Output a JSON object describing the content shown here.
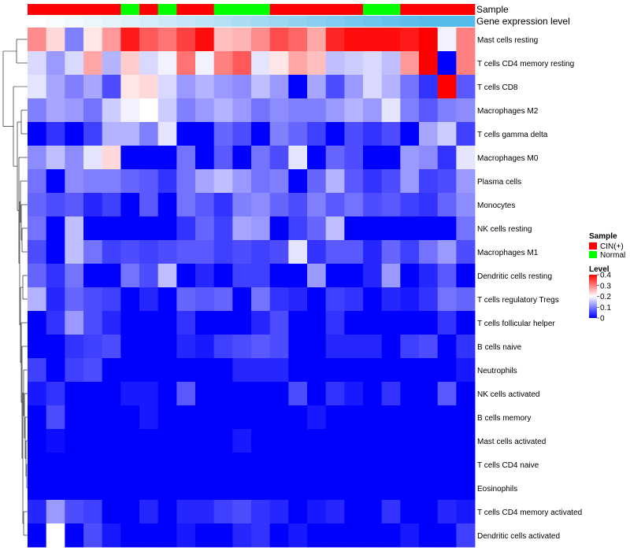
{
  "chart_data": {
    "type": "heatmap",
    "title": "",
    "annotation_titles": [
      "Sample",
      "Gene expression level"
    ],
    "legend_sample": {
      "title": "Sample",
      "labels": [
        "CIN(+)",
        "Normal"
      ],
      "colors": [
        "#ff0000",
        "#00ff00"
      ]
    },
    "legend_level": {
      "title": "Level",
      "ticks": [
        "0.4",
        "0.3",
        "0.2",
        "0.1",
        "0"
      ],
      "values": [
        0.4,
        0.3,
        0.2,
        0.1,
        0
      ],
      "colors": [
        "#0000ff",
        "#ffffff",
        "#ff0000"
      ],
      "range": [
        0,
        0.4
      ]
    },
    "samples": [
      "CIN(+)",
      "CIN(+)",
      "CIN(+)",
      "CIN(+)",
      "CIN(+)",
      "Normal",
      "CIN(+)",
      "Normal",
      "CIN(+)",
      "CIN(+)",
      "Normal",
      "Normal",
      "Normal",
      "CIN(+)",
      "CIN(+)",
      "CIN(+)",
      "CIN(+)",
      "CIN(+)",
      "Normal",
      "Normal",
      "CIN(+)",
      "CIN(+)",
      "CIN(+)",
      "CIN(+)"
    ],
    "gene_expression_colors": [
      "#ffffff",
      "#f9fcfe",
      "#f2f9fd",
      "#ebf6fc",
      "#e4f3fb",
      "#dcf0fa",
      "#d5edf9",
      "#cde9f8",
      "#c5e6f7",
      "#bde3f6",
      "#b4dff5",
      "#acdcf4",
      "#a3d8f3",
      "#9bd5f2",
      "#92d2f1",
      "#89cef0",
      "#80cbef",
      "#77c7ee",
      "#6ec4ed",
      "#66c0ec",
      "#5dbdeb",
      "#57bbea",
      "#55bbea",
      "#55bbea"
    ],
    "rows": [
      "Mast cells resting",
      "T cells CD4 memory resting",
      "T cells CD8",
      "Macrophages M2",
      "T cells gamma delta",
      "Macrophages M0",
      "Plasma cells",
      "Monocytes",
      "NK cells resting",
      "Macrophages M1",
      "Dendritic cells resting",
      "T cells regulatory  Tregs",
      "T cells follicular helper",
      "B cells naive",
      "Neutrophils",
      "NK cells activated",
      "B cells memory",
      "Mast cells activated",
      "T cells CD4 naive",
      "Eosinophils",
      "T cells CD4 memory activated",
      "Dendritic cells activated"
    ],
    "values": [
      [
        0.29,
        0.23,
        0.1,
        0.22,
        0.28,
        0.38,
        0.33,
        0.31,
        0.35,
        0.39,
        0.25,
        0.26,
        0.29,
        0.34,
        0.32,
        0.27,
        0.37,
        0.39,
        0.39,
        0.39,
        0.38,
        0.4,
        0.19,
        0.3
      ],
      [
        0.17,
        0.12,
        0.17,
        0.27,
        0.14,
        0.24,
        0.17,
        0.19,
        0.31,
        0.19,
        0.3,
        0.33,
        0.18,
        0.22,
        0.27,
        0.25,
        0.15,
        0.16,
        0.17,
        0.15,
        0.28,
        0.4,
        0.0,
        0.3
      ],
      [
        0.18,
        0.13,
        0.1,
        0.13,
        0.06,
        0.22,
        0.23,
        0.17,
        0.12,
        0.14,
        0.12,
        0.11,
        0.15,
        0.12,
        0.0,
        0.13,
        0.06,
        0.12,
        0.17,
        0.14,
        0.09,
        0.04,
        0.4,
        0.07
      ],
      [
        0.1,
        0.13,
        0.12,
        0.09,
        0.16,
        0.19,
        0.2,
        0.16,
        0.1,
        0.12,
        0.14,
        0.12,
        0.09,
        0.11,
        0.1,
        0.1,
        0.12,
        0.14,
        0.12,
        0.18,
        0.1,
        0.07,
        0.1,
        0.11
      ],
      [
        0.0,
        0.04,
        0.0,
        0.05,
        0.14,
        0.14,
        0.1,
        0.18,
        0.0,
        0.0,
        0.08,
        0.06,
        0.0,
        0.1,
        0.08,
        0.05,
        0.0,
        0.06,
        0.04,
        0.06,
        0.0,
        0.13,
        0.16,
        0.05
      ],
      [
        0.11,
        0.15,
        0.11,
        0.18,
        0.23,
        0.0,
        0.0,
        0.0,
        0.09,
        0.0,
        0.07,
        0.0,
        0.09,
        0.06,
        0.18,
        0.0,
        0.08,
        0.06,
        0.0,
        0.0,
        0.12,
        0.11,
        0.04,
        0.18
      ],
      [
        0.09,
        0.0,
        0.11,
        0.1,
        0.1,
        0.08,
        0.07,
        0.04,
        0.09,
        0.13,
        0.15,
        0.12,
        0.09,
        0.1,
        0.0,
        0.08,
        0.14,
        0.07,
        0.04,
        0.06,
        0.12,
        0.05,
        0.06,
        0.12
      ],
      [
        0.08,
        0.06,
        0.07,
        0.03,
        0.05,
        0.0,
        0.07,
        0.0,
        0.09,
        0.07,
        0.04,
        0.1,
        0.11,
        0.08,
        0.06,
        0.1,
        0.07,
        0.09,
        0.06,
        0.07,
        0.05,
        0.04,
        0.08,
        0.11
      ],
      [
        0.09,
        0.0,
        0.15,
        0.0,
        0.0,
        0.0,
        0.0,
        0.0,
        0.04,
        0.08,
        0.05,
        0.13,
        0.12,
        0.0,
        0.05,
        0.08,
        0.15,
        0.0,
        0.0,
        0.0,
        0.0,
        0.0,
        0.0,
        0.09
      ],
      [
        0.06,
        0.0,
        0.15,
        0.09,
        0.05,
        0.06,
        0.05,
        0.06,
        0.07,
        0.07,
        0.05,
        0.06,
        0.05,
        0.06,
        0.18,
        0.04,
        0.07,
        0.07,
        0.03,
        0.08,
        0.05,
        0.09,
        0.12,
        0.06
      ],
      [
        0.08,
        0.04,
        0.09,
        0.0,
        0.0,
        0.09,
        0.06,
        0.15,
        0.0,
        0.03,
        0.0,
        0.05,
        0.05,
        0.0,
        0.0,
        0.12,
        0.0,
        0.0,
        0.03,
        0.12,
        0.0,
        0.03,
        0.07,
        0.0
      ],
      [
        0.14,
        0.03,
        0.08,
        0.06,
        0.05,
        0.0,
        0.03,
        0.0,
        0.08,
        0.07,
        0.08,
        0.0,
        0.09,
        0.04,
        0.03,
        0.0,
        0.05,
        0.04,
        0.0,
        0.03,
        0.02,
        0.04,
        0.09,
        0.08
      ],
      [
        0.0,
        0.04,
        0.12,
        0.06,
        0.03,
        0.0,
        0.0,
        0.0,
        0.04,
        0.0,
        0.0,
        0.0,
        0.03,
        0.06,
        0.0,
        0.0,
        0.04,
        0.0,
        0.0,
        0.0,
        0.0,
        0.0,
        0.04,
        0.0
      ],
      [
        0.0,
        0.0,
        0.04,
        0.05,
        0.06,
        0.0,
        0.0,
        0.0,
        0.03,
        0.02,
        0.05,
        0.06,
        0.07,
        0.06,
        0.0,
        0.0,
        0.03,
        0.03,
        0.03,
        0.0,
        0.05,
        0.06,
        0.0,
        0.04
      ],
      [
        0.05,
        0.0,
        0.05,
        0.06,
        0.0,
        0.0,
        0.0,
        0.0,
        0.0,
        0.0,
        0.0,
        0.03,
        0.03,
        0.03,
        0.0,
        0.0,
        0.0,
        0.0,
        0.0,
        0.0,
        0.0,
        0.0,
        0.0,
        0.02
      ],
      [
        0.02,
        0.04,
        0.0,
        0.0,
        0.0,
        0.02,
        0.02,
        0.0,
        0.07,
        0.0,
        0.0,
        0.0,
        0.0,
        0.0,
        0.06,
        0.0,
        0.04,
        0.02,
        0.0,
        0.04,
        0.0,
        0.0,
        0.07,
        0.0
      ],
      [
        0.0,
        0.06,
        0.0,
        0.0,
        0.0,
        0.0,
        0.02,
        0.0,
        0.0,
        0.0,
        0.0,
        0.0,
        0.0,
        0.0,
        0.0,
        0.02,
        0.0,
        0.0,
        0.0,
        0.0,
        0.0,
        0.0,
        0.0,
        0.0
      ],
      [
        0.0,
        0.01,
        0.0,
        0.0,
        0.0,
        0.0,
        0.0,
        0.0,
        0.0,
        0.0,
        0.0,
        0.02,
        0.0,
        0.0,
        0.0,
        0.0,
        0.0,
        0.0,
        0.0,
        0.0,
        0.0,
        0.0,
        0.0,
        0.0
      ],
      [
        0.0,
        0.0,
        0.0,
        0.0,
        0.0,
        0.0,
        0.0,
        0.0,
        0.0,
        0.0,
        0.0,
        0.0,
        0.0,
        0.0,
        0.0,
        0.0,
        0.0,
        0.0,
        0.0,
        0.0,
        0.0,
        0.0,
        0.0,
        0.0
      ],
      [
        0.0,
        0.0,
        0.0,
        0.0,
        0.0,
        0.0,
        0.0,
        0.0,
        0.0,
        0.0,
        0.0,
        0.0,
        0.0,
        0.0,
        0.0,
        0.0,
        0.0,
        0.0,
        0.0,
        0.0,
        0.0,
        0.0,
        0.0,
        0.0
      ],
      [
        0.03,
        0.12,
        0.06,
        0.05,
        0.0,
        0.0,
        0.03,
        0.0,
        0.03,
        0.03,
        0.05,
        0.06,
        0.04,
        0.03,
        0.0,
        0.02,
        0.03,
        0.0,
        0.0,
        0.04,
        0.0,
        0.0,
        0.03,
        0.02
      ],
      [
        0.0,
        0.2,
        0.0,
        0.06,
        0.02,
        0.0,
        0.0,
        0.0,
        0.02,
        0.0,
        0.0,
        0.03,
        0.04,
        0.0,
        0.02,
        0.0,
        0.0,
        0.0,
        0.0,
        0.0,
        0.02,
        0.0,
        0.0,
        0.05
      ]
    ]
  }
}
